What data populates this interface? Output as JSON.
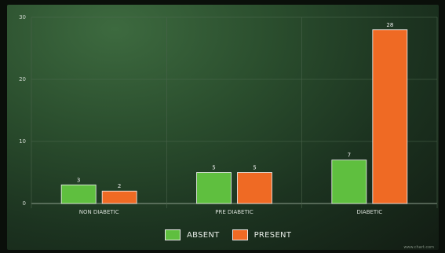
{
  "chart_data": {
    "type": "bar",
    "categories": [
      "NON DIABETIC",
      "PRE DIABETIC",
      "DIABETIC"
    ],
    "series": [
      {
        "name": "ABSENT",
        "color": "#5fbf3f",
        "values": [
          3,
          5,
          7
        ]
      },
      {
        "name": "PRESENT",
        "color": "#ef6a24",
        "values": [
          2,
          5,
          28
        ]
      }
    ],
    "y_ticks": [
      "0",
      "10",
      "20",
      "30"
    ],
    "ylim": [
      0,
      30
    ],
    "grid": true,
    "legend_position": "bottom"
  },
  "watermark": "www.chart.com"
}
